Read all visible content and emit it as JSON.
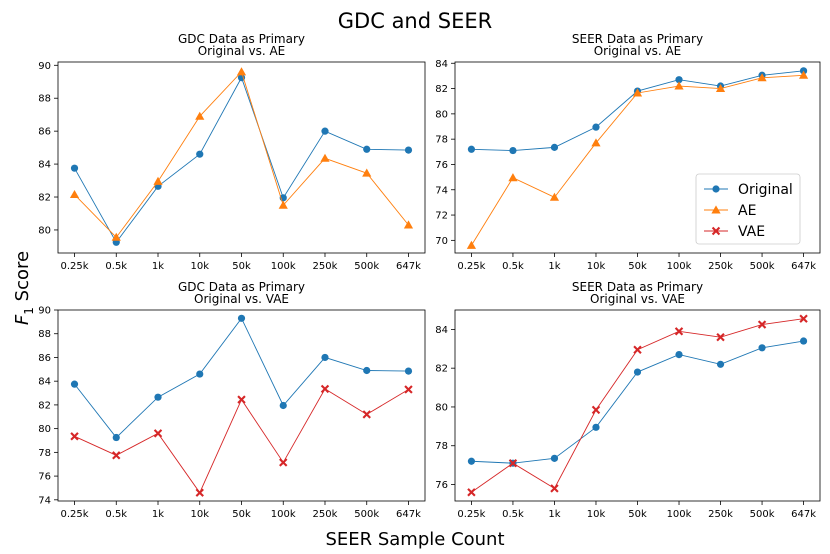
{
  "figure": {
    "title": "GDC and SEER",
    "xlabel": "SEER Sample Count",
    "ylabel_main": "F",
    "ylabel_sub": "1",
    "ylabel_rest": " Score"
  },
  "colors": {
    "Original": "#1f77b4",
    "AE": "#ff7f0e",
    "VAE": "#d62728"
  },
  "legend": {
    "location": "center-right of top-right panel",
    "entries": [
      "Original",
      "AE",
      "VAE"
    ]
  },
  "chart_data": [
    {
      "id": "gdc-ae",
      "type": "line",
      "title": [
        "GDC Data as Primary",
        "Original vs. AE"
      ],
      "categories": [
        "0.25k",
        "0.5k",
        "1k",
        "10k",
        "50k",
        "100k",
        "250k",
        "500k",
        "647k"
      ],
      "ylim": [
        78.6,
        90.2
      ],
      "yticks": [
        80,
        82,
        84,
        86,
        88,
        90
      ],
      "series": [
        {
          "name": "Original",
          "marker": "circle",
          "values": [
            83.75,
            79.25,
            82.65,
            84.6,
            89.25,
            81.95,
            86.0,
            84.9,
            84.85
          ]
        },
        {
          "name": "AE",
          "marker": "triangle",
          "values": [
            82.15,
            79.55,
            82.95,
            86.9,
            89.6,
            81.5,
            84.35,
            83.45,
            80.3
          ]
        }
      ]
    },
    {
      "id": "seer-ae",
      "type": "line",
      "title": [
        "SEER Data as Primary",
        "Original vs. AE"
      ],
      "categories": [
        "0.25k",
        "0.5k",
        "1k",
        "10k",
        "50k",
        "100k",
        "250k",
        "500k",
        "647k"
      ],
      "ylim": [
        69.0,
        84.1
      ],
      "yticks": [
        70,
        72,
        74,
        76,
        78,
        80,
        82,
        84
      ],
      "series": [
        {
          "name": "Original",
          "marker": "circle",
          "values": [
            77.2,
            77.1,
            77.35,
            78.95,
            81.8,
            82.7,
            82.2,
            83.05,
            83.4
          ]
        },
        {
          "name": "AE",
          "marker": "triangle",
          "values": [
            69.6,
            74.95,
            73.4,
            77.7,
            81.65,
            82.2,
            82.0,
            82.85,
            83.05
          ]
        }
      ]
    },
    {
      "id": "gdc-vae",
      "type": "line",
      "title": [
        "GDC Data as Primary",
        "Original vs. VAE"
      ],
      "categories": [
        "0.25k",
        "0.5k",
        "1k",
        "10k",
        "50k",
        "100k",
        "250k",
        "500k",
        "647k"
      ],
      "ylim": [
        73.9,
        90.0
      ],
      "yticks": [
        74,
        76,
        78,
        80,
        82,
        84,
        86,
        88,
        90
      ],
      "series": [
        {
          "name": "Original",
          "marker": "circle",
          "values": [
            83.75,
            79.25,
            82.65,
            84.6,
            89.3,
            81.95,
            86.0,
            84.9,
            84.85
          ]
        },
        {
          "name": "VAE",
          "marker": "x",
          "values": [
            79.35,
            77.75,
            79.6,
            74.6,
            82.45,
            77.15,
            83.35,
            81.2,
            83.3
          ]
        }
      ]
    },
    {
      "id": "seer-vae",
      "type": "line",
      "title": [
        "SEER Data as Primary",
        "Original vs. VAE"
      ],
      "categories": [
        "0.25k",
        "0.5k",
        "1k",
        "10k",
        "50k",
        "100k",
        "250k",
        "500k",
        "647k"
      ],
      "ylim": [
        75.15,
        85.0
      ],
      "yticks": [
        76,
        78,
        80,
        82,
        84
      ],
      "series": [
        {
          "name": "Original",
          "marker": "circle",
          "values": [
            77.2,
            77.1,
            77.35,
            78.95,
            81.8,
            82.7,
            82.2,
            83.05,
            83.4
          ]
        },
        {
          "name": "VAE",
          "marker": "x",
          "values": [
            75.6,
            77.1,
            75.8,
            79.85,
            82.95,
            83.9,
            83.6,
            84.25,
            84.55
          ]
        }
      ]
    }
  ]
}
